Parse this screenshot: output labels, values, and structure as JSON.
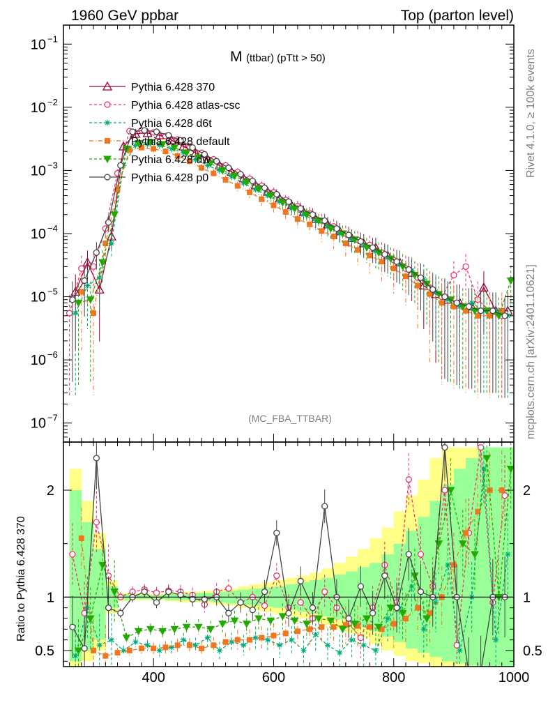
{
  "header": {
    "left": "1960 GeV ppbar",
    "right": "Top (parton level)"
  },
  "side_labels": {
    "rivet": "Rivet 4.1.0, ≥ 100k events",
    "mcplots": "mcplots.cern.ch [arXiv:2401.10621]"
  },
  "chart_data": {
    "type": "line",
    "title": "M",
    "title_sub": "(ttbar) (pTtt > 50)",
    "analysis": "(MC_FBA_TTBAR)",
    "xlabel": "",
    "ylabel_main": "",
    "ylabel_ratio": "Ratio to Pythia 6.428 370",
    "xlim": [
      250,
      1000
    ],
    "ylim_main": [
      5e-08,
      0.2
    ],
    "ylim_ratio": [
      0.35,
      2.45
    ],
    "y_scale_main": "log",
    "x_ticks": [
      400,
      600,
      800,
      1000
    ],
    "x_tick_labels": [
      "400",
      "600",
      "800",
      "1000"
    ],
    "y_ticks_main": [
      0.1,
      0.01,
      0.001,
      0.0001,
      1e-05,
      1e-06,
      1e-07
    ],
    "y_tick_labels_main": [
      {
        "base": "10",
        "exp": "−1"
      },
      {
        "base": "10",
        "exp": "−2"
      },
      {
        "base": "10",
        "exp": "−3"
      },
      {
        "base": "10",
        "exp": "−4"
      },
      {
        "base": "10",
        "exp": "−5"
      },
      {
        "base": "10",
        "exp": "−6"
      },
      {
        "base": "10",
        "exp": "−7"
      }
    ],
    "y_ticks_ratio": [
      0.5,
      1,
      2
    ],
    "y_tick_labels_ratio": [
      "0.5",
      "1",
      "2"
    ],
    "legend_position": "top-left",
    "series": [
      {
        "name": "Pythia 6.428 370",
        "color": "#990033",
        "dash": "none",
        "marker": "triangle-open",
        "x": [
          270,
          290,
          310,
          330,
          350,
          370,
          390,
          410,
          430,
          450,
          470,
          490,
          510,
          530,
          550,
          570,
          590,
          610,
          630,
          650,
          670,
          690,
          710,
          730,
          750,
          770,
          790,
          810,
          830,
          850,
          870,
          890,
          910,
          930,
          950,
          970,
          990
        ],
        "values": [
          1.2e-05,
          3.5e-05,
          1.3e-05,
          9e-05,
          0.0024,
          0.0038,
          0.0039,
          0.0036,
          0.003,
          0.0024,
          0.0019,
          0.0015,
          0.0012,
          0.00095,
          0.00075,
          0.00058,
          0.00046,
          0.00036,
          0.00028,
          0.00022,
          0.00017,
          0.00014,
          0.00011,
          8.5e-05,
          7e-05,
          6e-05,
          4.5e-05,
          3.5e-05,
          2.4e-05,
          1.5e-05,
          1.1e-05,
          9e-06,
          8e-06,
          7e-06,
          1.4e-05,
          6e-06,
          6e-06
        ]
      },
      {
        "name": "Pythia 6.428 atlas-csc",
        "color": "#ee3366",
        "dash": "4,3",
        "marker": "circle-open",
        "x": [
          260,
          280,
          300,
          320,
          340,
          360,
          380,
          400,
          420,
          440,
          460,
          480,
          500,
          520,
          540,
          560,
          580,
          600,
          620,
          640,
          660,
          680,
          700,
          720,
          740,
          760,
          780,
          800,
          820,
          840,
          860,
          880,
          900,
          920,
          940,
          960,
          980
        ],
        "values": [
          5.5e-06,
          2.8e-05,
          3e-05,
          0.00012,
          0.0009,
          0.0042,
          0.0043,
          0.004,
          0.0035,
          0.0031,
          0.0024,
          0.0019,
          0.0015,
          0.0012,
          0.00094,
          0.00074,
          0.00057,
          0.00045,
          0.00034,
          0.00027,
          0.00021,
          0.00016,
          0.00013,
          0.0001,
          8e-05,
          6.6e-05,
          5e-05,
          3.8e-05,
          2.8e-05,
          2e-05,
          1.4e-05,
          1e-05,
          2.2e-05,
          3e-05,
          9e-06,
          6e-06,
          5e-06
        ]
      },
      {
        "name": "Pythia 6.428 d6t",
        "color": "#00aa77",
        "dash": "4,3",
        "marker": "star",
        "x": [
          270,
          290,
          310,
          330,
          350,
          370,
          390,
          410,
          430,
          450,
          470,
          490,
          510,
          530,
          550,
          570,
          590,
          610,
          630,
          650,
          670,
          690,
          710,
          730,
          750,
          770,
          790,
          810,
          830,
          850,
          870,
          890,
          910,
          930,
          950,
          970,
          990
        ],
        "values": [
          5.5e-06,
          1.5e-05,
          2e-05,
          7e-05,
          0.0012,
          0.0025,
          0.0026,
          0.0025,
          0.0022,
          0.0019,
          0.0015,
          0.0012,
          0.001,
          0.0008,
          0.00063,
          0.0005,
          0.0004,
          0.00032,
          0.00025,
          0.0002,
          0.00016,
          0.00013,
          0.0001,
          8e-05,
          6.5e-05,
          5.2e-05,
          4.2e-05,
          3.3e-05,
          2.6e-05,
          1.9e-05,
          1.2e-05,
          9e-06,
          7e-06,
          8e-06,
          6e-06,
          6e-06,
          5e-06
        ]
      },
      {
        "name": "Pythia 6.428 default",
        "color": "#ee7722",
        "dash": "6,3,1,3",
        "marker": "square",
        "x": [
          280,
          300,
          320,
          340,
          360,
          380,
          400,
          420,
          440,
          460,
          480,
          500,
          520,
          540,
          560,
          580,
          600,
          620,
          640,
          660,
          680,
          700,
          720,
          740,
          760,
          780,
          800,
          820,
          840,
          860,
          880,
          900,
          920,
          940,
          960,
          980
        ],
        "values": [
          1.2e-05,
          5.5e-06,
          7e-05,
          0.0005,
          0.0021,
          0.0023,
          0.0022,
          0.002,
          0.0017,
          0.0014,
          0.0011,
          0.0009,
          0.00071,
          0.00057,
          0.00045,
          0.00035,
          0.00028,
          0.00022,
          0.00017,
          0.00014,
          0.00011,
          9e-05,
          7e-05,
          5.5e-05,
          4.5e-05,
          3.6e-05,
          2.8e-05,
          2.1e-05,
          1.5e-05,
          1.1e-05,
          8e-06,
          7e-06,
          6e-06,
          5e-06,
          5e-06,
          6e-06
        ]
      },
      {
        "name": "Pythia 6.428 dw",
        "color": "#22aa00",
        "dash": "4,3",
        "marker": "triangle-down",
        "x": [
          275,
          295,
          315,
          335,
          355,
          375,
          395,
          415,
          435,
          455,
          475,
          495,
          515,
          535,
          555,
          575,
          595,
          615,
          635,
          655,
          675,
          695,
          715,
          735,
          755,
          775,
          795,
          815,
          835,
          855,
          875,
          895,
          915,
          935,
          955,
          975,
          995
        ],
        "values": [
          8e-06,
          9e-06,
          3.5e-05,
          0.0002,
          0.0022,
          0.0027,
          0.0028,
          0.0026,
          0.0023,
          0.0019,
          0.0016,
          0.0013,
          0.001,
          0.00082,
          0.00065,
          0.00051,
          0.0004,
          0.00031,
          0.00025,
          0.0002,
          0.00016,
          0.00012,
          0.0001,
          8e-05,
          6e-05,
          5e-05,
          4e-05,
          3e-05,
          2.2e-05,
          1.6e-05,
          1.1e-05,
          9e-06,
          7e-06,
          6e-06,
          6e-06,
          5e-06,
          1.8e-05
        ]
      },
      {
        "name": "Pythia 6.428 p0",
        "color": "#444444",
        "dash": "none",
        "marker": "circle-open",
        "x": [
          265,
          285,
          305,
          325,
          345,
          365,
          385,
          405,
          425,
          445,
          465,
          485,
          505,
          525,
          545,
          565,
          585,
          605,
          625,
          645,
          665,
          685,
          705,
          725,
          745,
          765,
          785,
          805,
          825,
          845,
          865,
          885,
          905,
          925,
          945,
          965,
          985
        ],
        "values": [
          9e-06,
          1.8e-05,
          5e-05,
          0.00015,
          0.0012,
          0.0041,
          0.0043,
          0.0041,
          0.0036,
          0.003,
          0.0023,
          0.0018,
          0.0014,
          0.0011,
          0.00087,
          0.00068,
          0.00053,
          0.00042,
          0.00032,
          0.00025,
          0.0002,
          0.00016,
          0.00012,
          9.5e-05,
          7.5e-05,
          6e-05,
          4.7e-05,
          3.6e-05,
          2.7e-05,
          2e-05,
          1.3e-05,
          1e-05,
          8e-06,
          7e-06,
          6e-06,
          6e-06,
          5e-06
        ]
      }
    ],
    "ratio_band": {
      "x": [
        270,
        290,
        310,
        330,
        350,
        370,
        390,
        410,
        430,
        450,
        470,
        490,
        510,
        530,
        550,
        570,
        590,
        610,
        630,
        650,
        670,
        690,
        710,
        730,
        750,
        770,
        790,
        810,
        830,
        850,
        870,
        890,
        910,
        930,
        950,
        970,
        990
      ],
      "yellow_lo": [
        0.35,
        0.4,
        0.5,
        0.85,
        0.96,
        0.97,
        0.97,
        0.97,
        0.96,
        0.95,
        0.95,
        0.94,
        0.93,
        0.92,
        0.9,
        0.88,
        0.86,
        0.84,
        0.82,
        0.8,
        0.77,
        0.74,
        0.7,
        0.66,
        0.62,
        0.56,
        0.5,
        0.45,
        0.4,
        0.38,
        0.35,
        0.35,
        0.35,
        0.35,
        0.35,
        0.35,
        0.35
      ],
      "yellow_hi": [
        2.2,
        1.9,
        1.6,
        1.15,
        1.04,
        1.03,
        1.03,
        1.03,
        1.04,
        1.05,
        1.05,
        1.06,
        1.07,
        1.08,
        1.1,
        1.12,
        1.14,
        1.16,
        1.18,
        1.2,
        1.23,
        1.27,
        1.32,
        1.38,
        1.45,
        1.55,
        1.65,
        1.8,
        1.95,
        2.1,
        2.3,
        2.4,
        2.4,
        2.4,
        2.4,
        2.4,
        2.4
      ],
      "green_lo": [
        0.4,
        0.5,
        0.6,
        0.9,
        0.97,
        0.98,
        0.98,
        0.98,
        0.97,
        0.97,
        0.96,
        0.96,
        0.95,
        0.94,
        0.93,
        0.92,
        0.91,
        0.9,
        0.88,
        0.86,
        0.84,
        0.82,
        0.79,
        0.76,
        0.72,
        0.68,
        0.63,
        0.58,
        0.52,
        0.48,
        0.44,
        0.4,
        0.38,
        0.36,
        0.35,
        0.35,
        0.35
      ],
      "green_hi": [
        2.0,
        1.7,
        1.45,
        1.1,
        1.03,
        1.02,
        1.02,
        1.02,
        1.03,
        1.03,
        1.04,
        1.04,
        1.05,
        1.06,
        1.07,
        1.08,
        1.09,
        1.1,
        1.12,
        1.14,
        1.16,
        1.18,
        1.21,
        1.24,
        1.28,
        1.32,
        1.4,
        1.5,
        1.62,
        1.75,
        1.9,
        2.05,
        2.2,
        2.3,
        2.4,
        2.4,
        2.4
      ]
    },
    "ratio_series": [
      {
        "name": "Pythia 6.428 atlas-csc",
        "color": "#ee3366",
        "dash": "4,3",
        "marker": "circle-open",
        "x": [
          265,
          285,
          305,
          325,
          345,
          365,
          385,
          405,
          425,
          445,
          465,
          485,
          505,
          525,
          545,
          565,
          585,
          605,
          625,
          645,
          665,
          685,
          705,
          725,
          745,
          765,
          785,
          805,
          825,
          845,
          865,
          885,
          905,
          925,
          945,
          965,
          985
        ],
        "values": [
          1.4,
          0.85,
          1.7,
          1.2,
          1.0,
          1.05,
          1.07,
          1.04,
          1.06,
          1.05,
          1.02,
          0.93,
          1.05,
          1.08,
          0.95,
          1.0,
          0.92,
          1.2,
          0.9,
          0.95,
          0.8,
          1.05,
          0.9,
          0.75,
          0.62,
          0.9,
          1.3,
          0.95,
          2.1,
          1.4,
          1.1,
          2.0,
          0.55,
          1.6,
          2.4,
          0.95,
          1.95
        ]
      },
      {
        "name": "Pythia 6.428 d6t",
        "color": "#00aa77",
        "dash": "4,3",
        "marker": "star",
        "x": [
          270,
          290,
          310,
          330,
          350,
          370,
          390,
          410,
          430,
          450,
          470,
          490,
          510,
          530,
          550,
          570,
          590,
          610,
          630,
          650,
          670,
          690,
          710,
          730,
          750,
          770,
          790,
          810,
          830,
          850,
          870,
          890,
          910,
          930,
          950,
          970,
          990
        ],
        "values": [
          0.45,
          0.9,
          0.55,
          0.6,
          0.5,
          0.58,
          0.55,
          0.5,
          0.53,
          0.6,
          0.55,
          0.62,
          0.5,
          0.58,
          0.55,
          0.62,
          0.6,
          0.55,
          0.6,
          0.5,
          0.65,
          0.55,
          0.48,
          0.6,
          0.55,
          0.5,
          0.8,
          0.9,
          1.1,
          0.7,
          0.95,
          1.3,
          0.5,
          1.0,
          2.2,
          0.6,
          1.4
        ]
      },
      {
        "name": "Pythia 6.428 default",
        "color": "#ee7722",
        "dash": "6,3,1,3",
        "marker": "square",
        "x": [
          280,
          300,
          320,
          340,
          360,
          380,
          400,
          420,
          440,
          460,
          480,
          500,
          520,
          540,
          560,
          580,
          600,
          620,
          640,
          660,
          680,
          700,
          720,
          740,
          760,
          780,
          800,
          820,
          840,
          860,
          880,
          900,
          920,
          940,
          960,
          980
        ],
        "values": [
          1.55,
          0.5,
          0.45,
          0.48,
          0.5,
          0.52,
          0.52,
          0.53,
          0.55,
          0.55,
          0.52,
          0.55,
          0.58,
          0.6,
          0.6,
          0.62,
          0.64,
          0.66,
          0.68,
          0.7,
          0.72,
          0.72,
          0.74,
          0.73,
          0.72,
          0.7,
          0.75,
          0.8,
          0.9,
          0.85,
          1.0,
          1.3,
          1.6,
          1.8,
          2.0,
          2.0
        ]
      },
      {
        "name": "Pythia 6.428 dw",
        "color": "#22aa00",
        "dash": "4,3",
        "marker": "triangle-down",
        "x": [
          275,
          295,
          315,
          335,
          355,
          375,
          395,
          415,
          435,
          455,
          475,
          495,
          515,
          535,
          555,
          575,
          595,
          615,
          635,
          655,
          675,
          695,
          715,
          735,
          755,
          775,
          795,
          815,
          835,
          855,
          875,
          895,
          915,
          935,
          955,
          975,
          995
        ],
        "values": [
          0.5,
          0.8,
          1.3,
          1.05,
          0.62,
          0.68,
          0.7,
          0.68,
          0.7,
          0.72,
          0.72,
          0.7,
          0.75,
          0.78,
          0.75,
          0.8,
          0.78,
          0.82,
          0.78,
          0.75,
          0.8,
          0.78,
          0.7,
          0.75,
          0.8,
          0.72,
          0.9,
          0.85,
          1.2,
          0.8,
          1.5,
          2.0,
          1.5,
          1.4,
          2.3,
          1.0,
          2.2
        ]
      },
      {
        "name": "Pythia 6.428 p0",
        "color": "#444444",
        "dash": "none",
        "marker": "circle-open",
        "x": [
          265,
          285,
          305,
          325,
          345,
          365,
          385,
          405,
          425,
          445,
          465,
          485,
          505,
          525,
          545,
          565,
          585,
          605,
          625,
          645,
          665,
          685,
          705,
          725,
          745,
          765,
          785,
          805,
          825,
          845,
          865,
          885,
          905,
          925,
          945,
          965,
          985
        ],
        "values": [
          0.72,
          0.52,
          2.3,
          0.9,
          0.85,
          1.0,
          1.05,
          0.95,
          1.05,
          1.02,
          0.98,
          0.98,
          1.0,
          0.85,
          0.95,
          0.88,
          1.05,
          1.6,
          0.85,
          1.15,
          0.9,
          1.85,
          1.0,
          0.8,
          1.1,
          0.85,
          1.2,
          0.9,
          1.4,
          1.05,
          1.0,
          2.4,
          1.0,
          0.3,
          0.3,
          1.0,
          1.0
        ]
      }
    ]
  }
}
